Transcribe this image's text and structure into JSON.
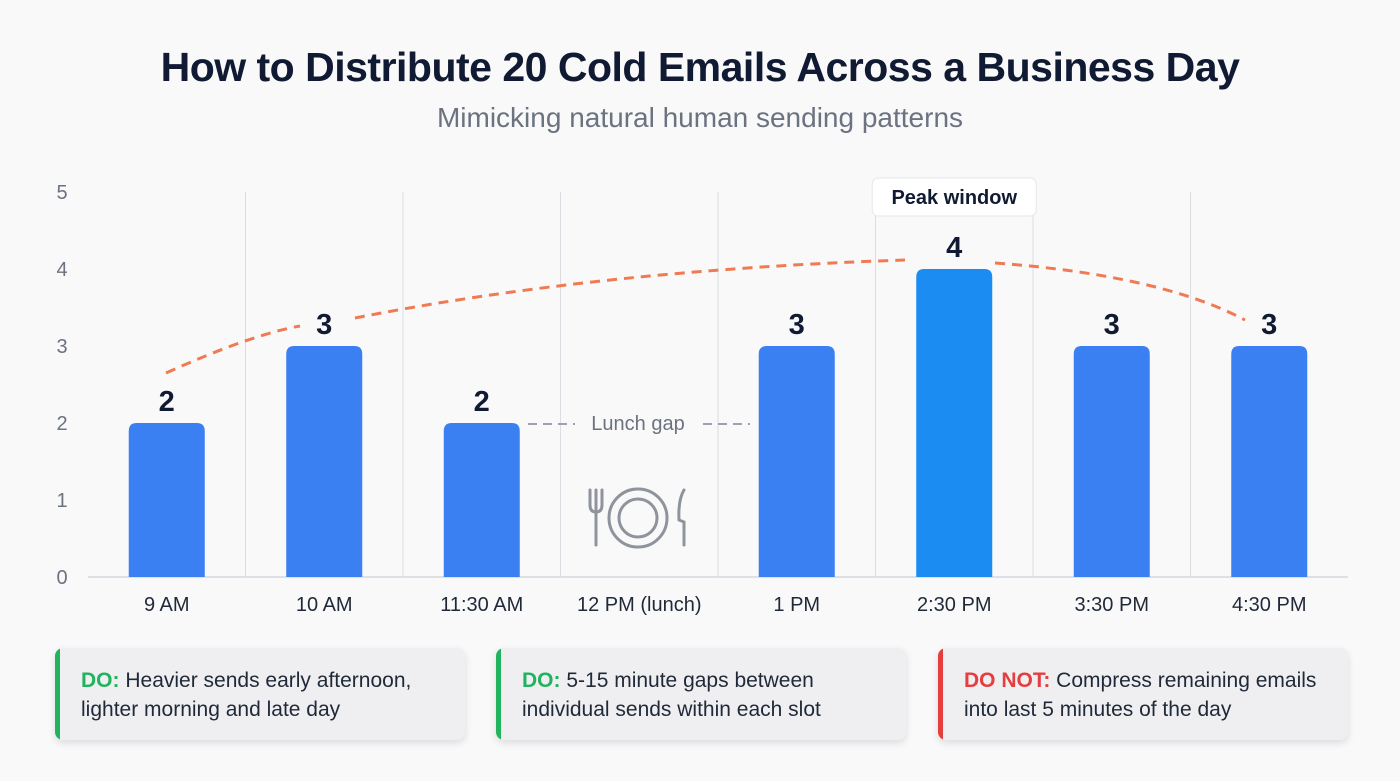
{
  "title": "How to Distribute 20 Cold Emails Across a Business Day",
  "subtitle": "Mimicking natural human sending patterns",
  "chart_data": {
    "type": "bar",
    "categories": [
      "9 AM",
      "10 AM",
      "11:30 AM",
      "12 PM (lunch)",
      "1 PM",
      "2:30 PM",
      "3:30 PM",
      "4:30 PM"
    ],
    "values": [
      2,
      3,
      2,
      null,
      3,
      4,
      3,
      3
    ],
    "data_labels": [
      "2",
      "3",
      "2",
      "",
      "3",
      "4",
      "3",
      "3"
    ],
    "ylim": [
      0,
      5
    ],
    "yticks": [
      "0",
      "1",
      "2",
      "3",
      "4",
      "5"
    ],
    "grid": "vertical separators between categories",
    "trend_line": "dashed curve over bars, peaking near 2:30 PM",
    "annotations": {
      "peak": "Peak window",
      "lunch": "Lunch gap",
      "lunch_icon": "plate-fork-knife-icon"
    },
    "colors": {
      "bar": "#3a80f2",
      "peak_bar": "#1a8cf2",
      "trend": "#f07a52",
      "label": "#111a33",
      "axis_text": "#6b7280"
    }
  },
  "cards": [
    {
      "tag": "DO:",
      "text": "Heavier sends early afternoon, lighter morning and late day",
      "color": "#22b35e"
    },
    {
      "tag": "DO:",
      "text": "5-15 minute gaps between individual sends within each slot",
      "color": "#22b35e"
    },
    {
      "tag": "DO NOT:",
      "text": "Compress remaining emails into last 5 minutes of the day",
      "color": "#e53e3e"
    }
  ]
}
